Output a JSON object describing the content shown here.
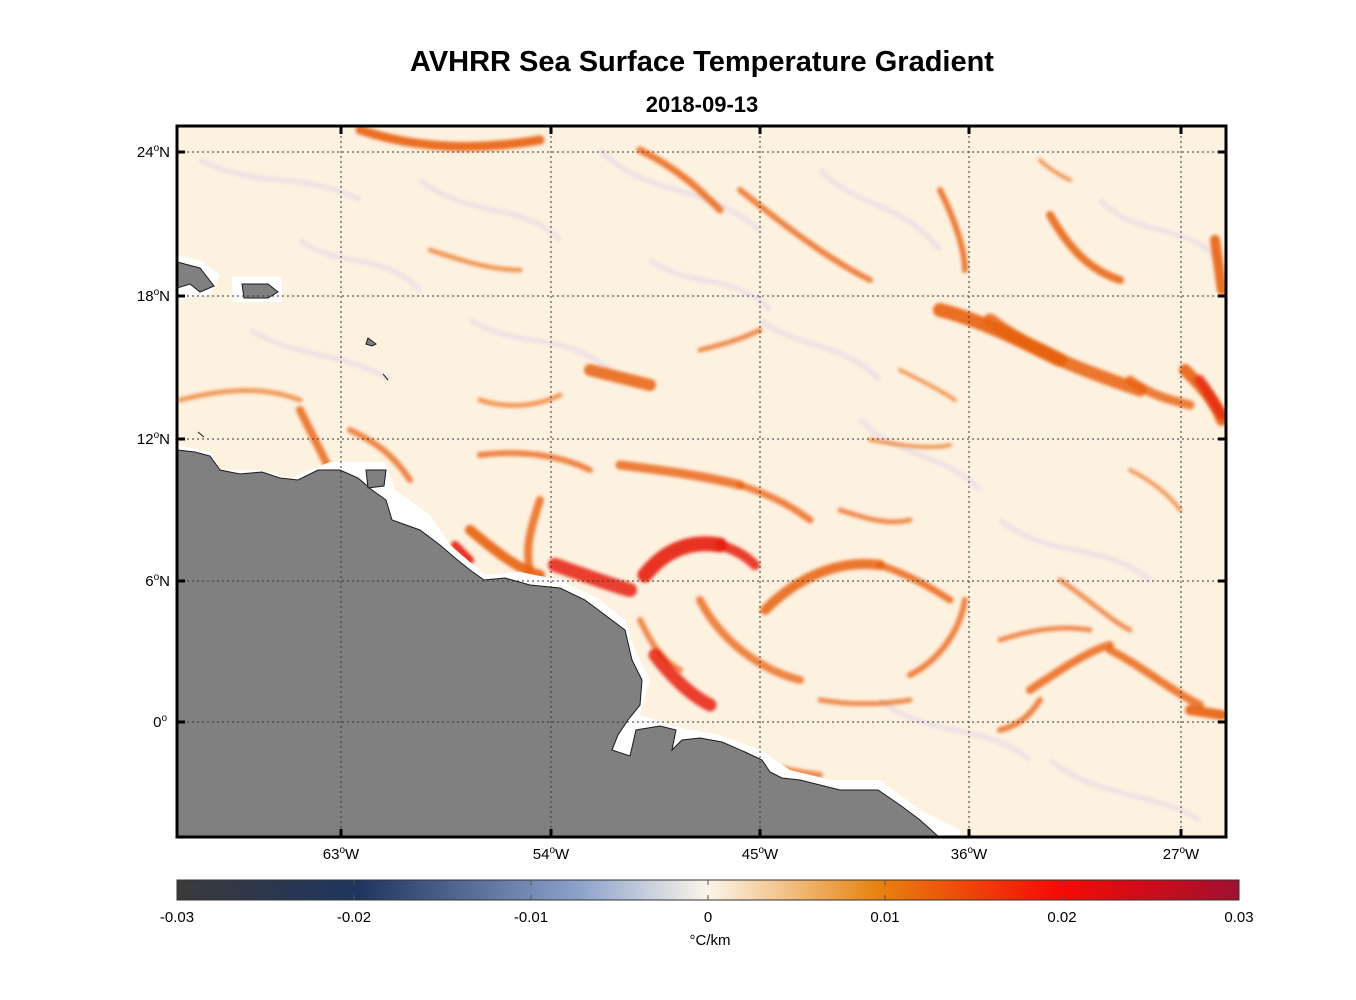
{
  "title": "AVHRR Sea Surface Temperature Gradient",
  "subtitle": "2018-09-13",
  "map": {
    "lat_ticks": [
      {
        "deg": "24",
        "hemi": "N"
      },
      {
        "deg": "18",
        "hemi": "N"
      },
      {
        "deg": "12",
        "hemi": "N"
      },
      {
        "deg": "6",
        "hemi": "N"
      },
      {
        "deg": "0",
        "hemi": ""
      }
    ],
    "lon_ticks": [
      {
        "deg": "63",
        "hemi": "W"
      },
      {
        "deg": "54",
        "hemi": "W"
      },
      {
        "deg": "45",
        "hemi": "W"
      },
      {
        "deg": "36",
        "hemi": "W"
      },
      {
        "deg": "27",
        "hemi": "W"
      }
    ],
    "land_color": "#808080",
    "ocean_base_color": "#fdf1e0",
    "front_color": "#e8600a",
    "strong_front_color": "#e61e0a",
    "grid": true
  },
  "colorbar": {
    "ticks": [
      "-0.03",
      "-0.02",
      "-0.01",
      "0",
      "0.01",
      "0.02",
      "0.03"
    ],
    "units": "°C/km",
    "stops": [
      "#3a3a3a",
      "#1f3560",
      "#8ea3cc",
      "#fbf5ea",
      "#e8820e",
      "#f70a05",
      "#a01030"
    ]
  }
}
